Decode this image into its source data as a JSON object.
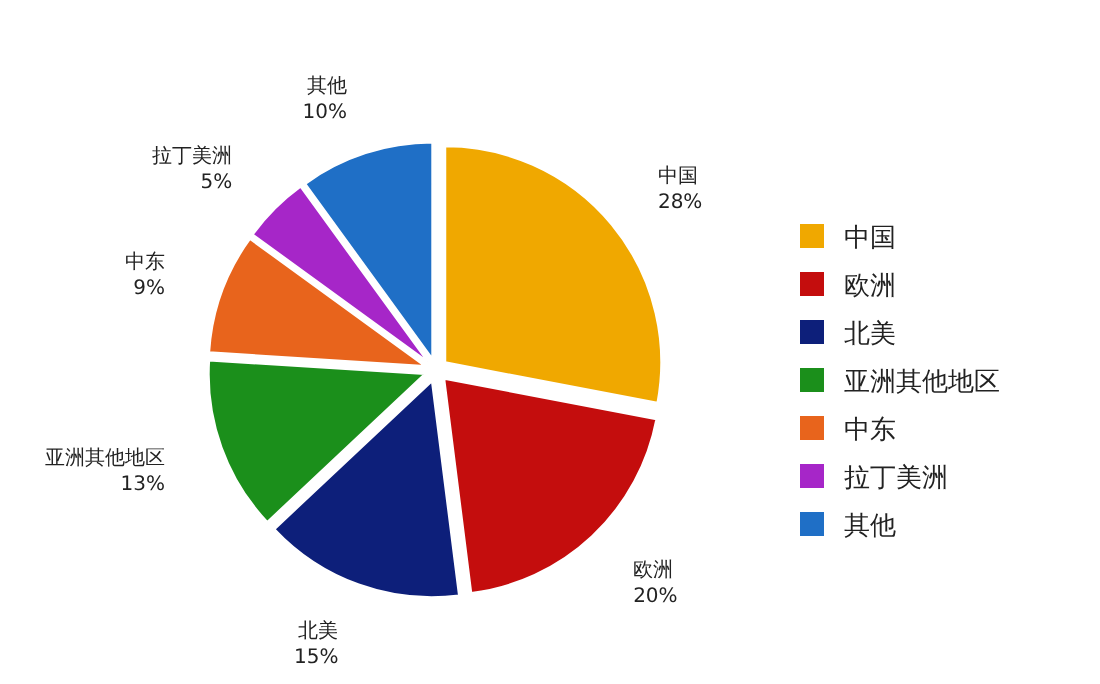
{
  "chart_data": {
    "type": "pie",
    "categories": [
      "中国",
      "欧洲",
      "北美",
      "亚洲其他地区",
      "中东",
      "拉丁美洲",
      "其他"
    ],
    "values": [
      28,
      20,
      15,
      13,
      9,
      5,
      10
    ],
    "colors": [
      "#f0a800",
      "#c40d0d",
      "#0d1f7a",
      "#1b8f1b",
      "#e8641c",
      "#a626c8",
      "#1f6fc6"
    ],
    "value_labels": [
      "28%",
      "20%",
      "15%",
      "13%",
      "9%",
      "5%",
      "10%"
    ],
    "legend": "right"
  }
}
